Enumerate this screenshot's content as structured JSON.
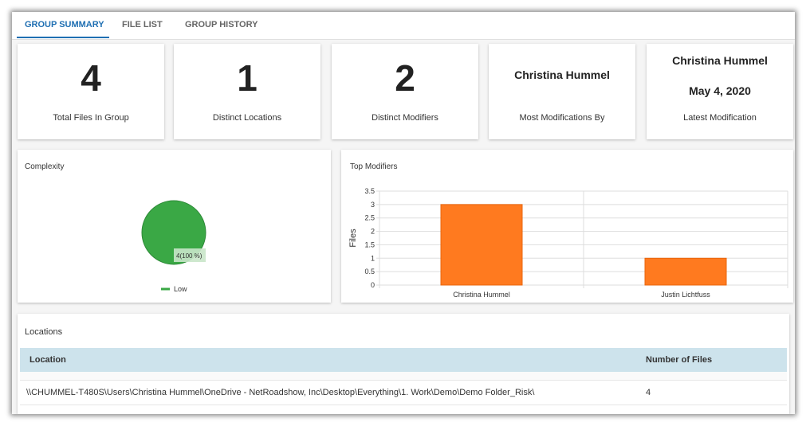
{
  "tabs": [
    "GROUP SUMMARY",
    "FILE LIST",
    "GROUP HISTORY"
  ],
  "cards": [
    {
      "value": 4,
      "caption": "Total Files In Group"
    },
    {
      "value": 1,
      "caption": "Distinct Locations"
    },
    {
      "value": 2,
      "caption": "Distinct Modifiers"
    },
    {
      "value": "Christina Hummel",
      "caption": "Most Modifications By"
    },
    {
      "value": "Christina Hummel",
      "date": "May 4, 2020",
      "caption": "Latest Modification"
    }
  ],
  "chart_data": [
    {
      "type": "pie",
      "title": "Complexity",
      "categories": [
        "Low"
      ],
      "values": [
        4
      ],
      "value_labels": [
        "4(100 %)"
      ],
      "colors": [
        "#3aa845"
      ]
    },
    {
      "type": "bar",
      "title": "Top Modifiers",
      "y_label": "Files",
      "categories": [
        "Christina Hummel",
        "Justin Lichtfuss"
      ],
      "values": [
        3,
        1
      ],
      "color": "#ff7a1f",
      "ylim": [
        0,
        3.5
      ],
      "yticks": [
        0,
        0.5,
        1,
        1.5,
        2,
        2.5,
        3,
        3.5
      ],
      "grid": true
    }
  ],
  "locations": {
    "title": "Locations",
    "columns": [
      "Location",
      "Number of Files"
    ],
    "rows": [
      [
        "\\\\CHUMMEL-T480S\\Users\\Christina Hummel\\OneDrive - NetRoadshow, Inc\\Desktop\\Everything\\1. Work\\Demo\\Demo Folder_Risk\\",
        4
      ]
    ]
  }
}
